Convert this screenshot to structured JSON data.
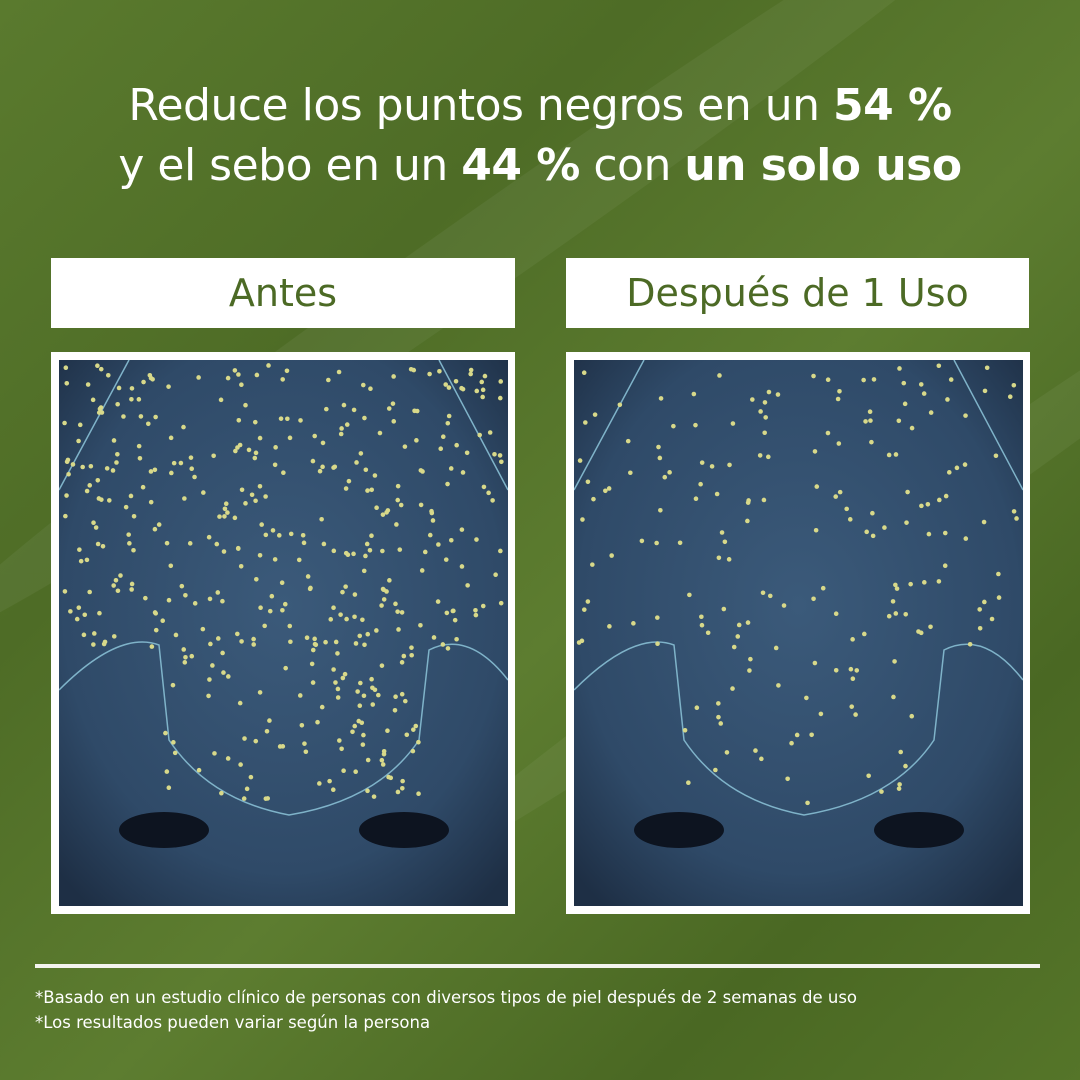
{
  "headline": {
    "line1_prefix": "Reduce los puntos negros en un ",
    "line1_bold": "54 %",
    "line2_prefix": "y el sebo en un ",
    "line2_bold1": "44 %",
    "line2_mid": " con ",
    "line2_bold2": "un solo uso"
  },
  "panels": [
    {
      "label": "Antes",
      "image": "nose-skin-analysis-many-dots"
    },
    {
      "label": "Después de 1 Uso",
      "image": "nose-skin-analysis-fewer-dots"
    }
  ],
  "colors": {
    "background": "#557529",
    "label_text": "#4c6a25",
    "dot": "#d8d98a",
    "skin": "#2f4a68"
  },
  "footnotes": [
    "*Basado en un estudio clínico de personas con diversos tipos de piel después de 2 semanas de uso",
    "*Los resultados pueden variar según la persona"
  ]
}
